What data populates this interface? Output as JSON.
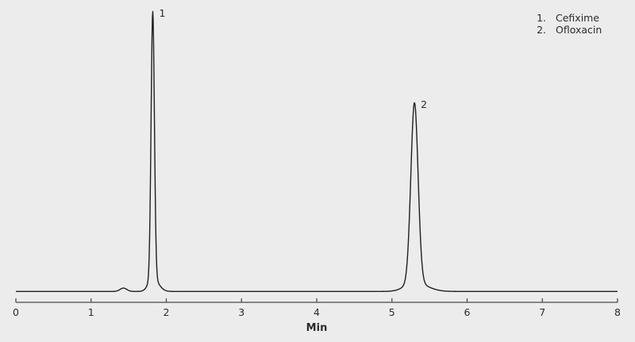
{
  "figure": {
    "background_color": "#ececec",
    "trace_color": "#1f1f1f",
    "axis_color": "#4a4a4a",
    "text_color": "#2b2b2b"
  },
  "legend": {
    "items": [
      {
        "number": "1.",
        "label": "Cefixime"
      },
      {
        "number": "2.",
        "label": "Ofloxacin"
      }
    ]
  },
  "chart_data": {
    "type": "line",
    "title": "",
    "xlabel": "Min",
    "ylabel": "",
    "xlim": [
      0,
      8
    ],
    "x_ticks": [
      "0",
      "1",
      "2",
      "3",
      "4",
      "5",
      "6",
      "7",
      "8"
    ],
    "grid": false,
    "legend_position": "top-right",
    "series_description": "HPLC chromatogram trace with flat baseline and two peaks",
    "peaks": [
      {
        "id": "1",
        "name": "Cefixime",
        "retention_time_min": 1.82,
        "height_rel": 1.0,
        "sigma_min": 0.022
      },
      {
        "id": "2",
        "name": "Ofloxacin",
        "retention_time_min": 5.3,
        "height_rel": 0.674,
        "sigma_min": 0.048
      }
    ],
    "baseline_disturbance": {
      "retention_time_min": 1.43,
      "height_rel": 0.012,
      "sigma_min": 0.045
    }
  }
}
